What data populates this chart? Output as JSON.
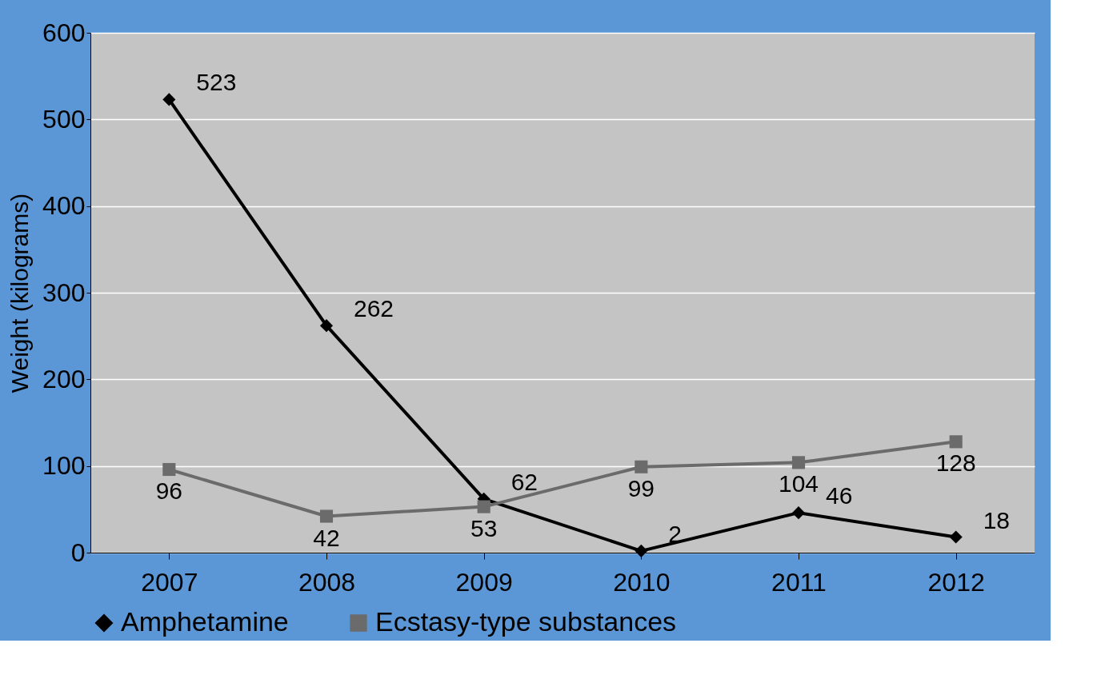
{
  "chart_data": {
    "type": "line",
    "ylabel": "Weight (kilograms)",
    "categories": [
      "2007",
      "2008",
      "2009",
      "2010",
      "2011",
      "2012"
    ],
    "series": [
      {
        "name": "Amphetamine",
        "color": "#000000",
        "marker": "diamond",
        "values": [
          523,
          262,
          62,
          2,
          46,
          18
        ]
      },
      {
        "name": "Ecstasy-type substances",
        "color": "#6b6b6b",
        "marker": "square",
        "values": [
          96,
          42,
          53,
          99,
          104,
          128
        ]
      }
    ],
    "ylim": [
      0,
      600
    ],
    "yticks": [
      0,
      100,
      200,
      300,
      400,
      500,
      600
    ],
    "grid": "y",
    "legend": "bottom",
    "data_labels": true,
    "line_style": "solid"
  }
}
